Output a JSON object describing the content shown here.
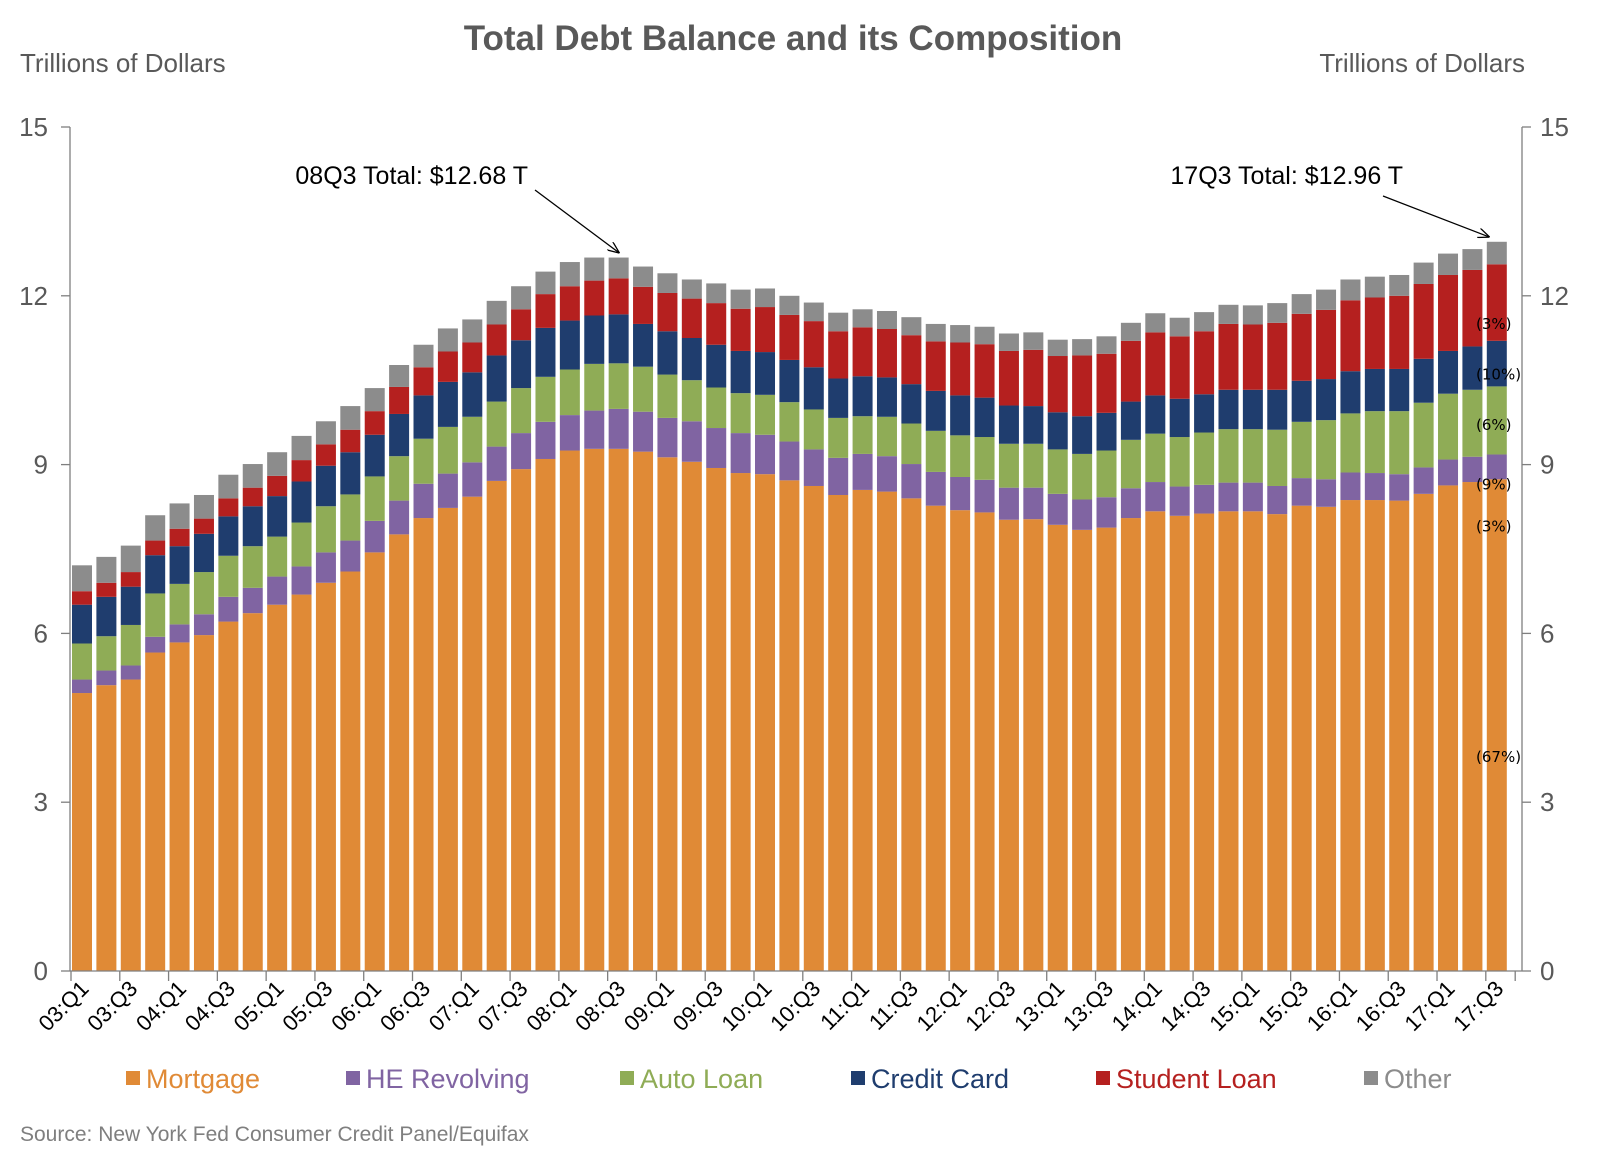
{
  "chart_data": {
    "type": "bar",
    "stacked": true,
    "title": "Total Debt Balance and its Composition",
    "ylabel_left": "Trillions of Dollars",
    "ylabel_right": "Trillions of Dollars",
    "ylim": [
      0,
      15
    ],
    "yticks": [
      0,
      3,
      6,
      9,
      12,
      15
    ],
    "categories": [
      "03:Q1",
      "03:Q2",
      "03:Q3",
      "03:Q4",
      "04:Q1",
      "04:Q2",
      "04:Q3",
      "04:Q4",
      "05:Q1",
      "05:Q2",
      "05:Q3",
      "05:Q4",
      "06:Q1",
      "06:Q2",
      "06:Q3",
      "06:Q4",
      "07:Q1",
      "07:Q2",
      "07:Q3",
      "07:Q4",
      "08:Q1",
      "08:Q2",
      "08:Q3",
      "08:Q4",
      "09:Q1",
      "09:Q2",
      "09:Q3",
      "09:Q4",
      "10:Q1",
      "10:Q2",
      "10:Q3",
      "10:Q4",
      "11:Q1",
      "11:Q2",
      "11:Q3",
      "11:Q4",
      "12:Q1",
      "12:Q2",
      "12:Q3",
      "12:Q4",
      "13:Q1",
      "13:Q2",
      "13:Q3",
      "13:Q4",
      "14:Q1",
      "14:Q2",
      "14:Q3",
      "14:Q4",
      "15:Q1",
      "15:Q2",
      "15:Q3",
      "15:Q4",
      "16:Q1",
      "16:Q2",
      "16:Q3",
      "16:Q4",
      "17:Q1",
      "17:Q2",
      "17:Q3"
    ],
    "xtick_labels": [
      "03:Q1",
      "03:Q3",
      "04:Q1",
      "04:Q3",
      "05:Q1",
      "05:Q3",
      "06:Q1",
      "06:Q3",
      "07:Q1",
      "07:Q3",
      "08:Q1",
      "08:Q3",
      "09:Q1",
      "09:Q3",
      "10:Q1",
      "10:Q3",
      "11:Q1",
      "11:Q3",
      "12:Q1",
      "12:Q3",
      "13:Q1",
      "13:Q3",
      "14:Q1",
      "14:Q3",
      "15:Q1",
      "15:Q3",
      "16:Q1",
      "16:Q3",
      "17:Q1",
      "17:Q3"
    ],
    "series": [
      {
        "name": "Mortgage",
        "color": "#e08a36",
        "values": [
          4.94,
          5.08,
          5.18,
          5.66,
          5.84,
          5.97,
          6.21,
          6.36,
          6.51,
          6.69,
          6.9,
          7.1,
          7.44,
          7.76,
          8.05,
          8.23,
          8.43,
          8.71,
          8.92,
          9.1,
          9.25,
          9.28,
          9.28,
          9.23,
          9.13,
          9.05,
          8.94,
          8.85,
          8.83,
          8.72,
          8.62,
          8.46,
          8.55,
          8.52,
          8.4,
          8.27,
          8.19,
          8.15,
          8.02,
          8.03,
          7.93,
          7.84,
          7.88,
          8.05,
          8.17,
          8.09,
          8.13,
          8.17,
          8.17,
          8.12,
          8.27,
          8.25,
          8.37,
          8.37,
          8.36,
          8.48,
          8.63,
          8.69,
          8.74
        ]
      },
      {
        "name": "HE Revolving",
        "color": "#8064a2",
        "values": [
          0.24,
          0.26,
          0.25,
          0.28,
          0.32,
          0.37,
          0.44,
          0.45,
          0.5,
          0.5,
          0.54,
          0.55,
          0.56,
          0.6,
          0.61,
          0.61,
          0.61,
          0.61,
          0.64,
          0.66,
          0.63,
          0.68,
          0.71,
          0.71,
          0.7,
          0.72,
          0.71,
          0.71,
          0.7,
          0.69,
          0.65,
          0.66,
          0.64,
          0.63,
          0.61,
          0.6,
          0.59,
          0.58,
          0.57,
          0.56,
          0.55,
          0.54,
          0.54,
          0.53,
          0.52,
          0.52,
          0.51,
          0.51,
          0.51,
          0.5,
          0.49,
          0.49,
          0.49,
          0.48,
          0.47,
          0.47,
          0.46,
          0.45,
          0.44
        ]
      },
      {
        "name": "Auto Loan",
        "color": "#8fac56",
        "values": [
          0.64,
          0.61,
          0.72,
          0.77,
          0.72,
          0.75,
          0.73,
          0.74,
          0.71,
          0.78,
          0.82,
          0.82,
          0.79,
          0.79,
          0.8,
          0.83,
          0.81,
          0.8,
          0.8,
          0.8,
          0.81,
          0.83,
          0.81,
          0.8,
          0.77,
          0.73,
          0.72,
          0.71,
          0.71,
          0.7,
          0.71,
          0.71,
          0.67,
          0.7,
          0.72,
          0.73,
          0.74,
          0.76,
          0.78,
          0.78,
          0.79,
          0.81,
          0.83,
          0.86,
          0.86,
          0.88,
          0.93,
          0.95,
          0.95,
          1.0,
          1.0,
          1.05,
          1.05,
          1.1,
          1.12,
          1.15,
          1.17,
          1.19,
          1.21
        ]
      },
      {
        "name": "Credit Card",
        "color": "#1f3d6e",
        "values": [
          0.69,
          0.7,
          0.68,
          0.68,
          0.67,
          0.68,
          0.7,
          0.71,
          0.72,
          0.73,
          0.72,
          0.75,
          0.74,
          0.75,
          0.77,
          0.8,
          0.79,
          0.82,
          0.85,
          0.87,
          0.87,
          0.86,
          0.87,
          0.76,
          0.77,
          0.75,
          0.76,
          0.75,
          0.76,
          0.75,
          0.75,
          0.7,
          0.71,
          0.7,
          0.7,
          0.71,
          0.71,
          0.7,
          0.68,
          0.67,
          0.66,
          0.67,
          0.67,
          0.68,
          0.68,
          0.68,
          0.68,
          0.7,
          0.7,
          0.71,
          0.73,
          0.73,
          0.75,
          0.75,
          0.75,
          0.78,
          0.76,
          0.77,
          0.81
        ]
      },
      {
        "name": "Student Loan",
        "color": "#b5201f",
        "values": [
          0.24,
          0.25,
          0.26,
          0.26,
          0.31,
          0.27,
          0.32,
          0.33,
          0.36,
          0.38,
          0.38,
          0.4,
          0.42,
          0.48,
          0.5,
          0.54,
          0.53,
          0.55,
          0.55,
          0.6,
          0.61,
          0.62,
          0.64,
          0.66,
          0.68,
          0.7,
          0.74,
          0.75,
          0.8,
          0.8,
          0.82,
          0.84,
          0.87,
          0.86,
          0.87,
          0.88,
          0.94,
          0.95,
          0.97,
          1.0,
          1.0,
          1.08,
          1.05,
          1.08,
          1.12,
          1.11,
          1.12,
          1.17,
          1.16,
          1.19,
          1.19,
          1.23,
          1.26,
          1.27,
          1.3,
          1.33,
          1.35,
          1.36,
          1.36
        ]
      },
      {
        "name": "Other",
        "color": "#8c8c8c",
        "values": [
          0.46,
          0.46,
          0.47,
          0.45,
          0.45,
          0.42,
          0.42,
          0.42,
          0.42,
          0.43,
          0.41,
          0.42,
          0.41,
          0.39,
          0.4,
          0.41,
          0.41,
          0.42,
          0.41,
          0.4,
          0.43,
          0.41,
          0.37,
          0.36,
          0.35,
          0.34,
          0.35,
          0.34,
          0.33,
          0.34,
          0.33,
          0.33,
          0.32,
          0.32,
          0.32,
          0.31,
          0.31,
          0.31,
          0.31,
          0.31,
          0.29,
          0.29,
          0.31,
          0.32,
          0.34,
          0.33,
          0.34,
          0.34,
          0.34,
          0.35,
          0.35,
          0.36,
          0.37,
          0.37,
          0.37,
          0.38,
          0.38,
          0.37,
          0.4
        ]
      }
    ],
    "annotations": [
      {
        "text": "08Q3 Total: $12.68 T",
        "category": "08:Q3"
      },
      {
        "text": "17Q3 Total: $12.96 T",
        "category": "17:Q3"
      }
    ],
    "composition_labels": [
      {
        "text": "(3%)",
        "series": "Other"
      },
      {
        "text": "(10%)",
        "series": "Student Loan"
      },
      {
        "text": "(6%)",
        "series": "Credit Card"
      },
      {
        "text": "(9%)",
        "series": "Auto Loan"
      },
      {
        "text": "(3%)",
        "series": "HE Revolving"
      },
      {
        "text": "(67%)",
        "series": "Mortgage"
      }
    ],
    "legend": {
      "position": "bottom",
      "items": [
        "Mortgage",
        "HE Revolving",
        "Auto Loan",
        "Credit Card",
        "Student Loan",
        "Other"
      ]
    },
    "grid": false,
    "source": "Source: New York Fed Consumer Credit Panel/Equifax"
  }
}
